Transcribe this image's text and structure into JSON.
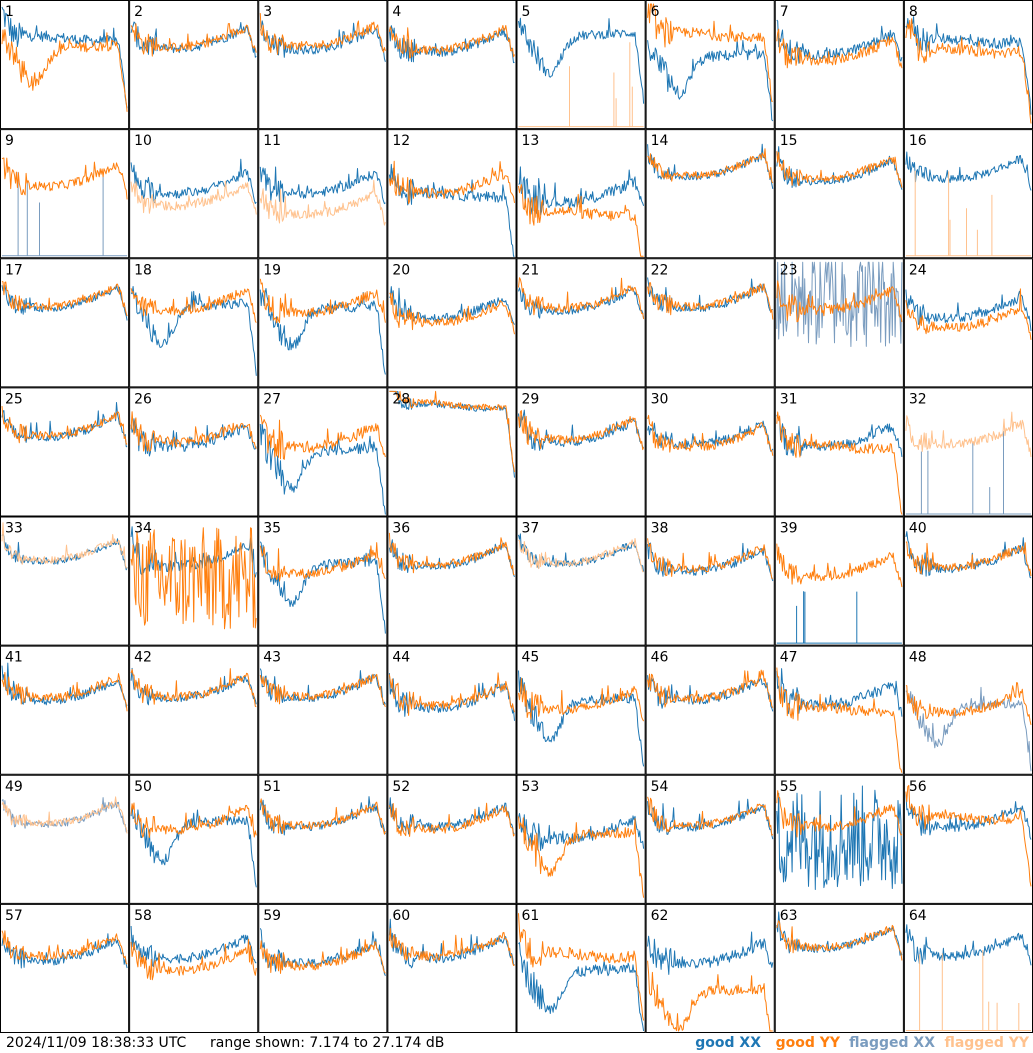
{
  "footer": {
    "timestamp": "2024/11/09 18:38:33 UTC",
    "range_text": "range shown: 7.174 to 27.174 dB",
    "legend": [
      {
        "label": "good XX",
        "color": "#1f77b4"
      },
      {
        "label": "good YY",
        "color": "#ff7f0e"
      },
      {
        "label": "flagged XX",
        "color": "#7a9cbf"
      },
      {
        "label": "flagged YY",
        "color": "#ffc28e"
      }
    ]
  },
  "chart_data": {
    "type": "line",
    "grid": {
      "rows": 8,
      "cols": 8
    },
    "ylim": [
      7.174,
      27.174
    ],
    "units": "dB",
    "colors": {
      "good_xx": "#1f77b4",
      "good_yy": "#ff7f0e",
      "flagged_xx": "#7a9cbf",
      "flagged_yy": "#ffc28e"
    },
    "panels": [
      {
        "id": "1",
        "xx": "good",
        "yy": "good",
        "xx_shape": "flat",
        "yy_shape": "dip",
        "xx_level": 0.72,
        "yy_level": 0.62,
        "spiky": 0.8
      },
      {
        "id": "2",
        "xx": "good",
        "yy": "good",
        "xx_shape": "bowl",
        "yy_shape": "bowl",
        "xx_level": 0.75,
        "yy_level": 0.76,
        "spiky": 0.6
      },
      {
        "id": "3",
        "xx": "good",
        "yy": "good",
        "xx_shape": "bowl",
        "yy_shape": "bowl",
        "xx_level": 0.74,
        "yy_level": 0.77,
        "spiky": 0.6
      },
      {
        "id": "4",
        "xx": "good",
        "yy": "good",
        "xx_shape": "bowl",
        "yy_shape": "bowl",
        "xx_level": 0.72,
        "yy_level": 0.74,
        "spiky": 0.6
      },
      {
        "id": "5",
        "xx": "good",
        "yy": "flagged",
        "xx_shape": "dip",
        "yy_shape": "spikes",
        "xx_level": 0.72,
        "yy_level": 0.0,
        "spiky": 0.6
      },
      {
        "id": "6",
        "xx": "good",
        "yy": "good",
        "xx_shape": "dip",
        "yy_shape": "flat",
        "xx_level": 0.55,
        "yy_level": 0.75,
        "spiky": 0.8
      },
      {
        "id": "7",
        "xx": "good",
        "yy": "good",
        "xx_shape": "bowl",
        "yy_shape": "bowl",
        "xx_level": 0.7,
        "yy_level": 0.65,
        "spiky": 0.7
      },
      {
        "id": "8",
        "xx": "good",
        "yy": "good",
        "xx_shape": "flat",
        "yy_shape": "flat",
        "xx_level": 0.7,
        "yy_level": 0.62,
        "spiky": 0.8
      },
      {
        "id": "9",
        "xx": "flagged",
        "yy": "good",
        "xx_shape": "spikes",
        "yy_shape": "bowl",
        "xx_level": 0.0,
        "yy_level": 0.68,
        "spiky": 0.6
      },
      {
        "id": "10",
        "xx": "good",
        "yy": "flagged",
        "xx_shape": "bowl",
        "yy_shape": "bowl",
        "xx_level": 0.62,
        "yy_level": 0.52,
        "spiky": 0.6
      },
      {
        "id": "11",
        "xx": "good",
        "yy": "flagged",
        "xx_shape": "bowl",
        "yy_shape": "bowl",
        "xx_level": 0.62,
        "yy_level": 0.45,
        "spiky": 0.6
      },
      {
        "id": "12",
        "xx": "good",
        "yy": "good",
        "xx_shape": "flat",
        "yy_shape": "bowl",
        "xx_level": 0.5,
        "yy_level": 0.62,
        "spiky": 0.8
      },
      {
        "id": "13",
        "xx": "good",
        "yy": "good",
        "xx_shape": "bowl",
        "yy_shape": "flat",
        "xx_level": 0.55,
        "yy_level": 0.35,
        "spiky": 0.9
      },
      {
        "id": "14",
        "xx": "good",
        "yy": "good",
        "xx_shape": "bowl",
        "yy_shape": "bowl",
        "xx_level": 0.76,
        "yy_level": 0.77,
        "spiky": 0.4
      },
      {
        "id": "15",
        "xx": "good",
        "yy": "good",
        "xx_shape": "bowl",
        "yy_shape": "bowl",
        "xx_level": 0.72,
        "yy_level": 0.74,
        "spiky": 0.5
      },
      {
        "id": "16",
        "xx": "good",
        "yy": "flagged",
        "xx_shape": "bowl",
        "yy_shape": "spikes",
        "xx_level": 0.74,
        "yy_level": 0.0,
        "spiky": 0.5
      },
      {
        "id": "17",
        "xx": "good",
        "yy": "good",
        "xx_shape": "bowl",
        "yy_shape": "bowl",
        "xx_level": 0.74,
        "yy_level": 0.75,
        "spiky": 0.4
      },
      {
        "id": "18",
        "xx": "good",
        "yy": "good",
        "xx_shape": "dip",
        "yy_shape": "bowl",
        "xx_level": 0.62,
        "yy_level": 0.72,
        "spiky": 0.6
      },
      {
        "id": "19",
        "xx": "good",
        "yy": "good",
        "xx_shape": "dip",
        "yy_shape": "bowl",
        "xx_level": 0.6,
        "yy_level": 0.7,
        "spiky": 0.7
      },
      {
        "id": "20",
        "xx": "good",
        "yy": "good",
        "xx_shape": "bowl",
        "yy_shape": "bowl",
        "xx_level": 0.66,
        "yy_level": 0.62,
        "spiky": 0.6
      },
      {
        "id": "21",
        "xx": "good",
        "yy": "good",
        "xx_shape": "bowl",
        "yy_shape": "bowl",
        "xx_level": 0.72,
        "yy_level": 0.74,
        "spiky": 0.5
      },
      {
        "id": "22",
        "xx": "good",
        "yy": "good",
        "xx_shape": "bowl",
        "yy_shape": "bowl",
        "xx_level": 0.74,
        "yy_level": 0.75,
        "spiky": 0.5
      },
      {
        "id": "23",
        "xx": "flagged",
        "yy": "good",
        "xx_shape": "noise",
        "yy_shape": "bowl",
        "xx_level": 0.3,
        "yy_level": 0.72,
        "spiky": 0.8
      },
      {
        "id": "24",
        "xx": "good",
        "yy": "good",
        "xx_shape": "bowl",
        "yy_shape": "bowl",
        "xx_level": 0.66,
        "yy_level": 0.58,
        "spiky": 0.6
      },
      {
        "id": "25",
        "xx": "good",
        "yy": "good",
        "xx_shape": "bowl",
        "yy_shape": "bowl",
        "xx_level": 0.74,
        "yy_level": 0.75,
        "spiky": 0.5
      },
      {
        "id": "26",
        "xx": "good",
        "yy": "good",
        "xx_shape": "bowl",
        "yy_shape": "bowl",
        "xx_level": 0.66,
        "yy_level": 0.7,
        "spiky": 0.7
      },
      {
        "id": "27",
        "xx": "good",
        "yy": "good",
        "xx_shape": "dip",
        "yy_shape": "bowl",
        "xx_level": 0.5,
        "yy_level": 0.66,
        "spiky": 0.9
      },
      {
        "id": "28",
        "xx": "good",
        "yy": "good",
        "xx_shape": "flat",
        "yy_shape": "flat",
        "xx_level": 0.88,
        "yy_level": 0.89,
        "spiky": 0.2
      },
      {
        "id": "29",
        "xx": "good",
        "yy": "good",
        "xx_shape": "bowl",
        "yy_shape": "bowl",
        "xx_level": 0.7,
        "yy_level": 0.72,
        "spiky": 0.6
      },
      {
        "id": "30",
        "xx": "good",
        "yy": "good",
        "xx_shape": "bowl",
        "yy_shape": "bowl",
        "xx_level": 0.68,
        "yy_level": 0.66,
        "spiky": 0.6
      },
      {
        "id": "31",
        "xx": "good",
        "yy": "good",
        "xx_shape": "bowl",
        "yy_shape": "flat",
        "xx_level": 0.66,
        "yy_level": 0.55,
        "spiky": 0.7
      },
      {
        "id": "32",
        "xx": "flagged",
        "yy": "flagged",
        "xx_shape": "spikes",
        "yy_shape": "bowl",
        "xx_level": 0.0,
        "yy_level": 0.68,
        "spiky": 0.6
      },
      {
        "id": "33",
        "xx": "good",
        "yy": "flagged",
        "xx_shape": "bowl",
        "yy_shape": "bowl",
        "xx_level": 0.78,
        "yy_level": 0.79,
        "spiky": 0.3
      },
      {
        "id": "34",
        "xx": "good",
        "yy": "good",
        "xx_shape": "bowl",
        "yy_shape": "noise",
        "xx_level": 0.74,
        "yy_level": 0.1,
        "spiky": 0.9
      },
      {
        "id": "35",
        "xx": "good",
        "yy": "good",
        "xx_shape": "dip",
        "yy_shape": "bowl",
        "xx_level": 0.62,
        "yy_level": 0.68,
        "spiky": 0.7
      },
      {
        "id": "36",
        "xx": "good",
        "yy": "good",
        "xx_shape": "bowl",
        "yy_shape": "bowl",
        "xx_level": 0.74,
        "yy_level": 0.75,
        "spiky": 0.5
      },
      {
        "id": "37",
        "xx": "good",
        "yy": "flagged",
        "xx_shape": "bowl",
        "yy_shape": "bowl",
        "xx_level": 0.76,
        "yy_level": 0.77,
        "spiky": 0.4
      },
      {
        "id": "38",
        "xx": "good",
        "yy": "good",
        "xx_shape": "bowl",
        "yy_shape": "bowl",
        "xx_level": 0.7,
        "yy_level": 0.72,
        "spiky": 0.5
      },
      {
        "id": "39",
        "xx": "good",
        "yy": "good",
        "xx_shape": "spikes",
        "yy_shape": "bowl",
        "xx_level": 0.0,
        "yy_level": 0.66,
        "spiky": 0.6
      },
      {
        "id": "40",
        "xx": "good",
        "yy": "good",
        "xx_shape": "bowl",
        "yy_shape": "bowl",
        "xx_level": 0.72,
        "yy_level": 0.73,
        "spiky": 0.5
      },
      {
        "id": "41",
        "xx": "good",
        "yy": "good",
        "xx_shape": "bowl",
        "yy_shape": "bowl",
        "xx_level": 0.7,
        "yy_level": 0.72,
        "spiky": 0.6
      },
      {
        "id": "42",
        "xx": "good",
        "yy": "good",
        "xx_shape": "bowl",
        "yy_shape": "bowl",
        "xx_level": 0.72,
        "yy_level": 0.73,
        "spiky": 0.5
      },
      {
        "id": "43",
        "xx": "good",
        "yy": "good",
        "xx_shape": "bowl",
        "yy_shape": "bowl",
        "xx_level": 0.72,
        "yy_level": 0.73,
        "spiky": 0.5
      },
      {
        "id": "44",
        "xx": "good",
        "yy": "good",
        "xx_shape": "bowl",
        "yy_shape": "bowl",
        "xx_level": 0.64,
        "yy_level": 0.66,
        "spiky": 0.7
      },
      {
        "id": "45",
        "xx": "good",
        "yy": "good",
        "xx_shape": "dip",
        "yy_shape": "bowl",
        "xx_level": 0.56,
        "yy_level": 0.62,
        "spiky": 0.8
      },
      {
        "id": "46",
        "xx": "good",
        "yy": "good",
        "xx_shape": "bowl",
        "yy_shape": "bowl",
        "xx_level": 0.7,
        "yy_level": 0.71,
        "spiky": 0.6
      },
      {
        "id": "47",
        "xx": "good",
        "yy": "good",
        "xx_shape": "bowl",
        "yy_shape": "flat",
        "xx_level": 0.66,
        "yy_level": 0.52,
        "spiky": 0.8
      },
      {
        "id": "48",
        "xx": "flagged",
        "yy": "good",
        "xx_shape": "dip",
        "yy_shape": "bowl",
        "xx_level": 0.52,
        "yy_level": 0.6,
        "spiky": 0.6
      },
      {
        "id": "49",
        "xx": "flagged",
        "yy": "flagged",
        "xx_shape": "bowl",
        "yy_shape": "bowl",
        "xx_level": 0.74,
        "yy_level": 0.75,
        "spiky": 0.3
      },
      {
        "id": "50",
        "xx": "good",
        "yy": "good",
        "xx_shape": "dip",
        "yy_shape": "bowl",
        "xx_level": 0.62,
        "yy_level": 0.7,
        "spiky": 0.7
      },
      {
        "id": "51",
        "xx": "good",
        "yy": "good",
        "xx_shape": "bowl",
        "yy_shape": "bowl",
        "xx_level": 0.72,
        "yy_level": 0.73,
        "spiky": 0.5
      },
      {
        "id": "52",
        "xx": "good",
        "yy": "good",
        "xx_shape": "bowl",
        "yy_shape": "bowl",
        "xx_level": 0.72,
        "yy_level": 0.7,
        "spiky": 0.6
      },
      {
        "id": "53",
        "xx": "good",
        "yy": "good",
        "xx_shape": "bowl",
        "yy_shape": "dip",
        "xx_level": 0.62,
        "yy_level": 0.52,
        "spiky": 0.8
      },
      {
        "id": "54",
        "xx": "good",
        "yy": "good",
        "xx_shape": "bowl",
        "yy_shape": "bowl",
        "xx_level": 0.72,
        "yy_level": 0.73,
        "spiky": 0.5
      },
      {
        "id": "55",
        "xx": "good",
        "yy": "good",
        "xx_shape": "noise",
        "yy_shape": "bowl",
        "xx_level": 0.1,
        "yy_level": 0.72,
        "spiky": 0.7
      },
      {
        "id": "56",
        "xx": "good",
        "yy": "good",
        "xx_shape": "bowl",
        "yy_shape": "flat",
        "xx_level": 0.72,
        "yy_level": 0.68,
        "spiky": 0.7
      },
      {
        "id": "57",
        "xx": "good",
        "yy": "good",
        "xx_shape": "bowl",
        "yy_shape": "bowl",
        "xx_level": 0.68,
        "yy_level": 0.72,
        "spiky": 0.5
      },
      {
        "id": "58",
        "xx": "good",
        "yy": "good",
        "xx_shape": "bowl",
        "yy_shape": "bowl",
        "xx_level": 0.7,
        "yy_level": 0.6,
        "spiky": 0.6
      },
      {
        "id": "59",
        "xx": "good",
        "yy": "good",
        "xx_shape": "bowl",
        "yy_shape": "bowl",
        "xx_level": 0.66,
        "yy_level": 0.64,
        "spiky": 0.6
      },
      {
        "id": "60",
        "xx": "good",
        "yy": "good",
        "xx_shape": "bowl",
        "yy_shape": "bowl",
        "xx_level": 0.7,
        "yy_level": 0.72,
        "spiky": 0.6
      },
      {
        "id": "61",
        "xx": "good",
        "yy": "good",
        "xx_shape": "dip",
        "yy_shape": "flat",
        "xx_level": 0.46,
        "yy_level": 0.62,
        "spiky": 0.9
      },
      {
        "id": "62",
        "xx": "good",
        "yy": "good",
        "xx_shape": "bowl",
        "yy_shape": "dip",
        "xx_level": 0.66,
        "yy_level": 0.3,
        "spiky": 0.8
      },
      {
        "id": "63",
        "xx": "good",
        "yy": "good",
        "xx_shape": "bowl",
        "yy_shape": "bowl",
        "xx_level": 0.78,
        "yy_level": 0.79,
        "spiky": 0.4
      },
      {
        "id": "64",
        "xx": "good",
        "yy": "flagged",
        "xx_shape": "bowl",
        "yy_shape": "spikes",
        "xx_level": 0.72,
        "yy_level": 0.0,
        "spiky": 0.6
      }
    ]
  }
}
